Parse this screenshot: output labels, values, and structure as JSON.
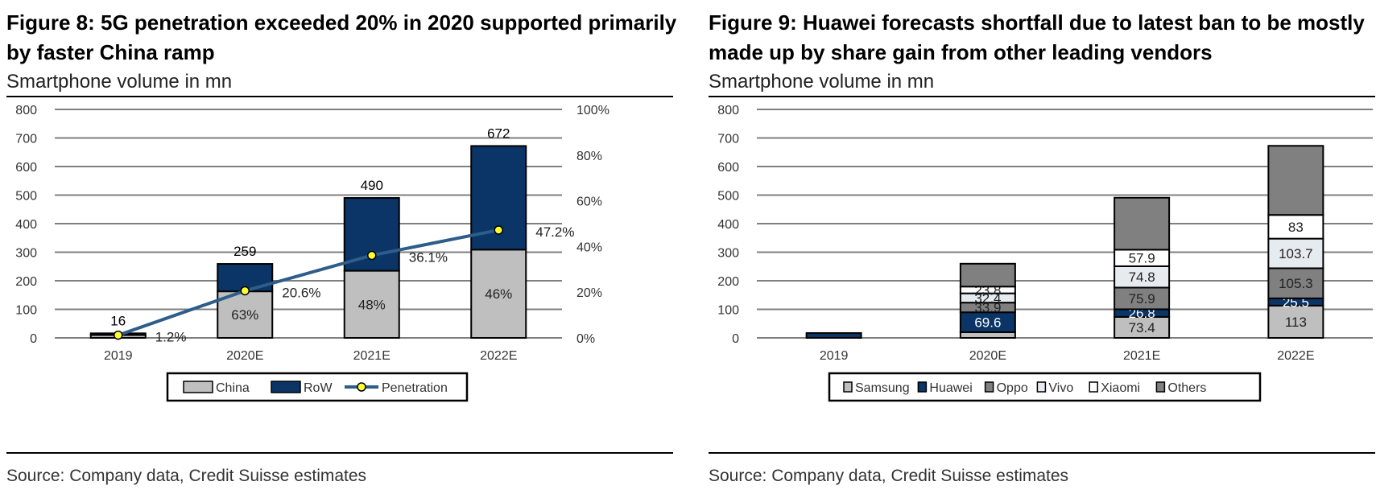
{
  "left": {
    "title": "Figure 8: 5G penetration exceeded 20% in 2020 supported primarily by faster China ramp",
    "subtitle": "Smartphone volume in mn",
    "source": "Source: Company data, Credit Suisse estimates"
  },
  "right": {
    "title": "Figure 9: Huawei forecasts shortfall due to latest ban to be mostly made up by share gain from other leading vendors",
    "subtitle": "Smartphone volume in mn",
    "source": "Source: Company data, Credit Suisse estimates"
  },
  "chart_data": [
    {
      "type": "bar",
      "stacked": true,
      "categories": [
        "2019",
        "2020E",
        "2021E",
        "2022E"
      ],
      "series": [
        {
          "name": "China",
          "values": [
            10,
            163,
            235,
            309
          ],
          "labels": [
            "",
            "63%",
            "48%",
            "46%"
          ],
          "color": "#bfbfbf"
        },
        {
          "name": "RoW",
          "values": [
            6,
            96,
            255,
            363
          ],
          "color": "#0a3566"
        }
      ],
      "totals": [
        16,
        259,
        490,
        672
      ],
      "line": {
        "name": "Penetration",
        "values": [
          1.2,
          20.6,
          36.1,
          47.2
        ],
        "labels": [
          "1.2%",
          "20.6%",
          "36.1%",
          "47.2%"
        ],
        "color": "#2e5d8a",
        "marker_color": "#ffff33"
      },
      "y_ticks": [
        "0",
        "100",
        "200",
        "300",
        "400",
        "500",
        "600",
        "700",
        "800"
      ],
      "y2_ticks": [
        "0%",
        "20%",
        "40%",
        "60%",
        "80%",
        "100%"
      ],
      "ylim": [
        0,
        800
      ],
      "y2lim": [
        0,
        100
      ],
      "legend": "bottom",
      "grid": true
    },
    {
      "type": "bar",
      "stacked": true,
      "categories": [
        "2019",
        "2020E",
        "2021E",
        "2022E"
      ],
      "series": [
        {
          "name": "Samsung",
          "values": [
            0,
            20,
            73.4,
            113
          ],
          "labels": [
            "",
            "",
            "73.4",
            "113"
          ],
          "color": "#bfbfbf"
        },
        {
          "name": "Huawei",
          "values": [
            17,
            69.6,
            26.8,
            25.5
          ],
          "labels": [
            "",
            "69.6",
            "26.8",
            "25.5"
          ],
          "color": "#0a3566"
        },
        {
          "name": "Oppo",
          "values": [
            0,
            33.9,
            75.9,
            105.3
          ],
          "labels": [
            "",
            "33.9",
            "75.9",
            "105.3"
          ],
          "color": "#808080"
        },
        {
          "name": "Vivo",
          "values": [
            0,
            32.4,
            74.8,
            103.7
          ],
          "labels": [
            "",
            "32.4",
            "74.8",
            "103.7"
          ],
          "color": "#e6ebf0"
        },
        {
          "name": "Xiaomi",
          "values": [
            0,
            23.8,
            57.9,
            83
          ],
          "labels": [
            "",
            "23.8",
            "57.9",
            "83"
          ],
          "color": "#ffffff"
        },
        {
          "name": "Others",
          "values": [
            0,
            80,
            182,
            242
          ],
          "labels": [
            "",
            "",
            "",
            ""
          ],
          "color": "#808080"
        }
      ],
      "y_ticks": [
        "0",
        "100",
        "200",
        "300",
        "400",
        "500",
        "600",
        "700",
        "800"
      ],
      "ylim": [
        0,
        800
      ],
      "legend": "bottom",
      "grid": true
    }
  ]
}
